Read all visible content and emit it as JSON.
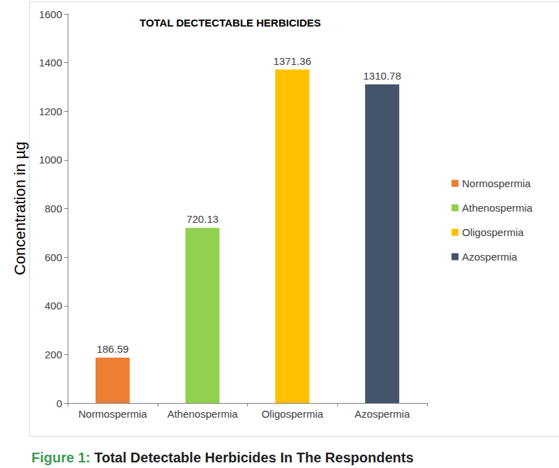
{
  "chart_data": {
    "type": "bar",
    "title": "TOTAL DECTECTABLE HERBICIDES",
    "y_label": "Concentration in µg",
    "caption": "Figure 1: Total Detectable Herbicides In The Respondents",
    "categories": [
      "Normospermia",
      "Athenospermia",
      "Oligospermia",
      "Azospermia"
    ],
    "values": [
      186.59,
      720.13,
      1371.36,
      1310.78
    ],
    "colors": [
      "#ed7d31",
      "#92d050",
      "#ffc000",
      "#44546a"
    ],
    "ylim": [
      0,
      1600
    ],
    "yticks": [
      0,
      200,
      400,
      600,
      800,
      1000,
      1200,
      1400,
      1600
    ],
    "grid": false,
    "legend": "right",
    "data_labels": true
  }
}
